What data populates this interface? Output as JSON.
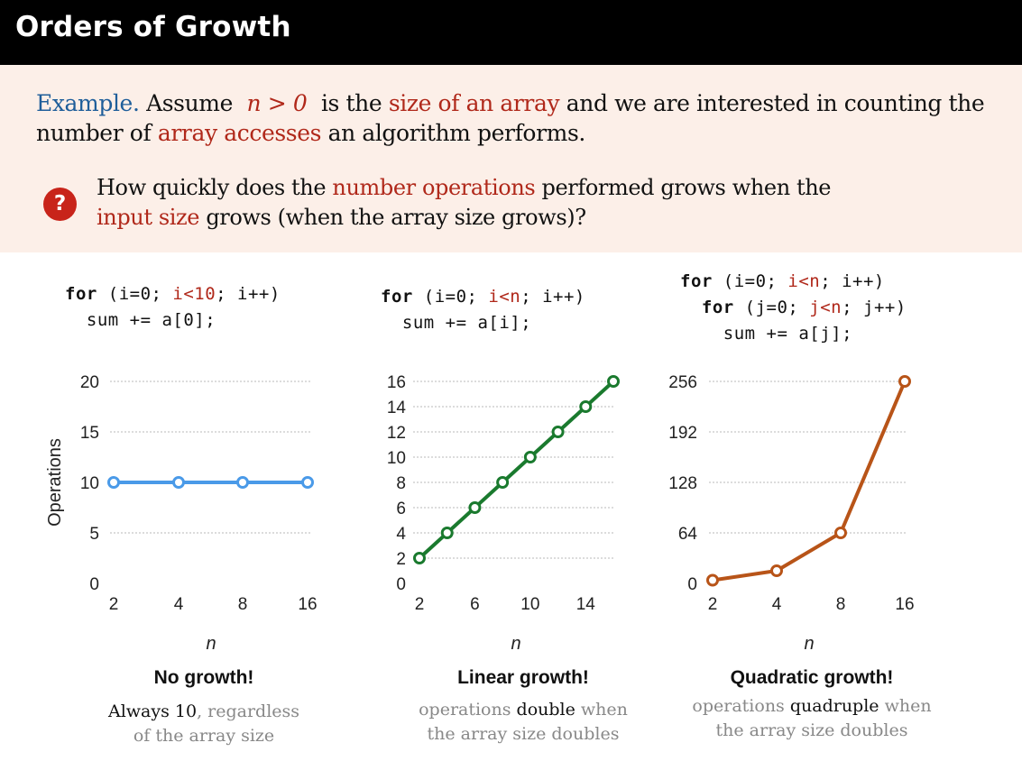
{
  "header": {
    "title": "Orders of Growth"
  },
  "intro": {
    "example_label": "Example.",
    "assume": "Assume",
    "n_expr": "n > 0",
    "is_the": "is the",
    "size_of_array": "size of an array",
    "and_we": "and we are interested in counting the",
    "number_of": "number of",
    "array_accesses": "array accesses",
    "algorithm_performs": "an algorithm performs."
  },
  "question": {
    "badge": "?",
    "line1_a": "How quickly does the",
    "line1_b": "number operations",
    "line1_c": "performed grows when the",
    "line2_a": "input size",
    "line2_b": "grows (when the array size grows)?"
  },
  "colors": {
    "constant": "#4a9ae8",
    "linear": "#1a7a2e",
    "quadratic": "#b85418",
    "accent_red": "#b0281a",
    "accent_blue": "#1f5e9a"
  },
  "panels": [
    {
      "code": [
        {
          "kw": "for",
          "pre": " (i=0; ",
          "red": "i<10",
          "post": "; i++)"
        },
        {
          "kw": "",
          "pre": "  sum += a[0];",
          "red": "",
          "post": ""
        }
      ],
      "caption_title": "No growth!",
      "caption_l1_dark": "Always 10",
      "caption_l1_light": ", regardless",
      "caption_l2": "of the array size"
    },
    {
      "code": [
        {
          "kw": "for",
          "pre": " (i=0; ",
          "red": "i<n",
          "post": "; i++)"
        },
        {
          "kw": "",
          "pre": "  sum += a[i];",
          "red": "",
          "post": ""
        }
      ],
      "caption_title": "Linear growth!",
      "caption_l1_a": "operations ",
      "caption_l1_dark": "double",
      "caption_l1_b": " when",
      "caption_l2": "the array size doubles"
    },
    {
      "code": [
        {
          "kw": "for",
          "pre": " (i=0; ",
          "red": "i<n",
          "post": "; i++)"
        },
        {
          "kw": "for",
          "pre": " (j=0; ",
          "red": "j<n",
          "post": "; j++)"
        },
        {
          "kw": "",
          "pre": "    sum += a[j];",
          "red": "",
          "post": ""
        }
      ],
      "caption_title": "Quadratic growth!",
      "caption_l1_a": "operations ",
      "caption_l1_dark": "quadruple",
      "caption_l1_b": " when",
      "caption_l2": "the array size doubles"
    }
  ],
  "chart_data": [
    {
      "type": "line",
      "x": [
        2,
        4,
        8,
        16
      ],
      "x_ticks": [
        "2",
        "4",
        "8",
        "16"
      ],
      "x_scale": "categorical",
      "series": [
        {
          "values": [
            10,
            10,
            10,
            10
          ]
        }
      ],
      "ylabel": "Operations",
      "xlabel": "n",
      "yticks": [
        0,
        5,
        10,
        15,
        20
      ],
      "ylim": [
        0,
        20
      ],
      "grid": true
    },
    {
      "type": "line",
      "x": [
        2,
        4,
        6,
        8,
        10,
        12,
        14,
        16
      ],
      "x_ticks": [
        "2",
        "6",
        "10",
        "14"
      ],
      "x_scale": "linear",
      "series": [
        {
          "values": [
            2,
            4,
            6,
            8,
            10,
            12,
            14,
            16
          ]
        }
      ],
      "ylabel": "",
      "xlabel": "n",
      "yticks": [
        0,
        2,
        4,
        6,
        8,
        10,
        12,
        14,
        16
      ],
      "ylim": [
        0,
        16
      ],
      "grid": true
    },
    {
      "type": "line",
      "x": [
        2,
        4,
        8,
        16
      ],
      "x_ticks": [
        "2",
        "4",
        "8",
        "16"
      ],
      "x_scale": "categorical",
      "series": [
        {
          "values": [
            4,
            16,
            64,
            256
          ]
        }
      ],
      "ylabel": "",
      "xlabel": "n",
      "yticks": [
        0,
        64,
        128,
        192,
        256
      ],
      "ylim": [
        0,
        256
      ],
      "grid": true
    }
  ]
}
